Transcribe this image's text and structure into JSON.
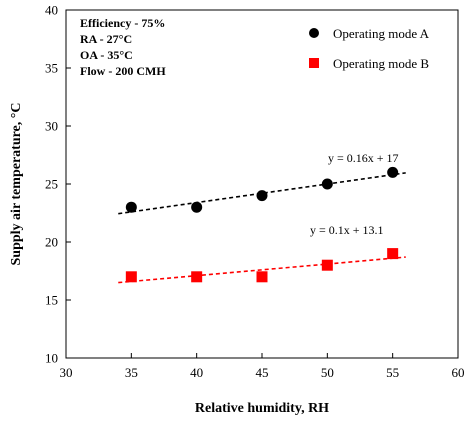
{
  "chart_data": {
    "type": "scatter",
    "xlabel": "Relative humidity, RH",
    "ylabel": "Supply air temperature, °C",
    "xlim": [
      30,
      60
    ],
    "ylim": [
      10,
      40
    ],
    "xticks": [
      "30",
      "35",
      "40",
      "45",
      "50",
      "55",
      "60"
    ],
    "yticks": [
      "10",
      "15",
      "20",
      "25",
      "30",
      "35",
      "40"
    ],
    "grid": false,
    "legend_position": "top-right",
    "annotations": [
      "Efficiency - 75%",
      "RA - 27°C",
      "OA - 35°C",
      "Flow - 200 CMH"
    ],
    "series": [
      {
        "name": "Operating mode A",
        "marker": "circle",
        "color": "#000000",
        "x": [
          35,
          40,
          45,
          50,
          55
        ],
        "y": [
          23,
          23,
          24,
          25,
          26
        ],
        "trendline": {
          "label": "y = 0.16x + 17",
          "slope": 0.16,
          "intercept": 17,
          "x_range": [
            34,
            56
          ],
          "color": "#000000"
        }
      },
      {
        "name": "Operating mode B",
        "marker": "square",
        "color": "#ff0000",
        "x": [
          35,
          40,
          45,
          50,
          55
        ],
        "y": [
          17,
          17,
          17,
          18,
          19
        ],
        "trendline": {
          "label": "y = 0.1x + 13.1",
          "slope": 0.1,
          "intercept": 13.1,
          "x_range": [
            34,
            56
          ],
          "color": "#ff0000"
        }
      }
    ]
  }
}
